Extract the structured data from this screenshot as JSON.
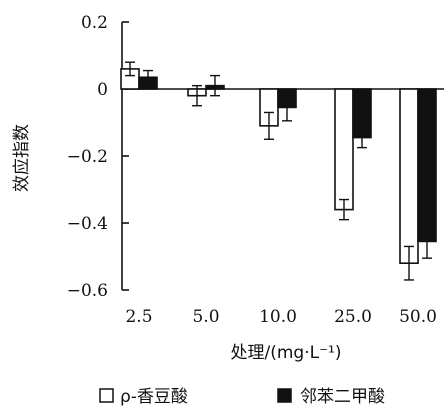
{
  "chart_data": {
    "type": "bar",
    "ylabel": "效应指数",
    "xlabel": "处理/(mg·L⁻¹)",
    "categories": [
      "2.5",
      "5.0",
      "10.0",
      "25.0",
      "50.0"
    ],
    "ylim": [
      -0.6,
      0.2
    ],
    "yticks": [
      "0.2",
      "0",
      "−0.2",
      "−0.4",
      "−0.6"
    ],
    "ytick_values": [
      0.2,
      0,
      -0.2,
      -0.4,
      -0.6
    ],
    "series": [
      {
        "name": "ρ-香豆酸",
        "fill": "#ffffff",
        "stroke": "#111111",
        "values": [
          0.06,
          -0.02,
          -0.11,
          -0.36,
          -0.52
        ],
        "errors": [
          0.02,
          0.03,
          0.04,
          0.03,
          0.05
        ]
      },
      {
        "name": "邻苯二甲酸",
        "fill": "#111111",
        "stroke": "#111111",
        "values": [
          0.035,
          0.01,
          -0.055,
          -0.145,
          -0.455
        ],
        "errors": [
          0.02,
          0.03,
          0.04,
          0.03,
          0.05
        ]
      }
    ],
    "grid": false,
    "legend_position": "bottom"
  }
}
